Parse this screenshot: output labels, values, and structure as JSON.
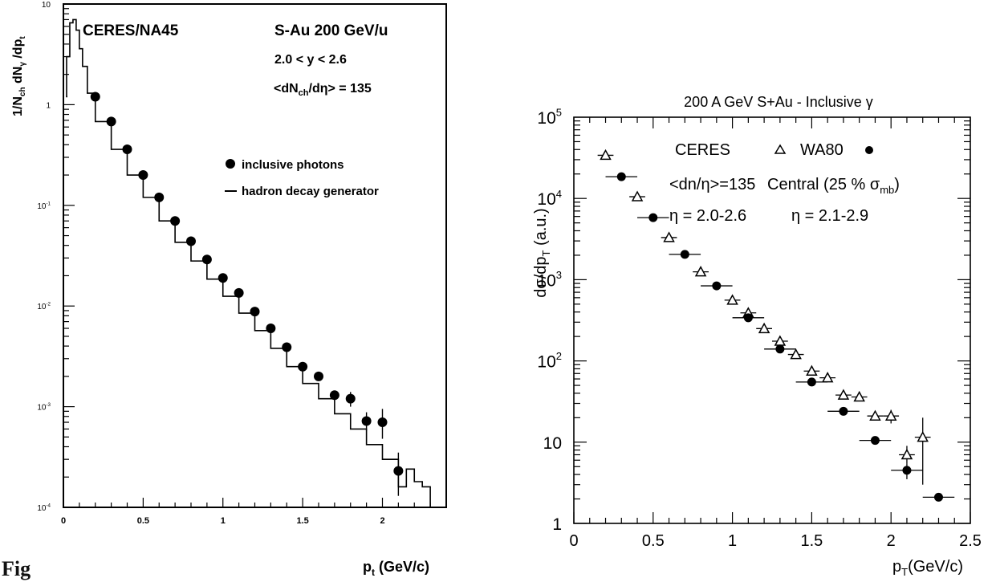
{
  "caption_fragment": "Fig",
  "chart_data": [
    {
      "type": "scatter",
      "log_y": true,
      "xlim": [
        0,
        2.4
      ],
      "ylim": [
        0.0001,
        10
      ],
      "xlabel": "p_t (GeV/c)",
      "ylabel": "1/N_ch dN_γ /dp_t",
      "x_ticks": [
        0,
        0.5,
        1,
        1.5,
        2
      ],
      "x_tick_labels": [
        "0",
        "0.5",
        "1",
        "1.5",
        "2"
      ],
      "y_ticks": [
        10,
        1,
        0.1,
        0.01,
        0.001,
        0.0001
      ],
      "y_tick_labels": [
        {
          "base": "10",
          "exp": ""
        },
        {
          "base": "1",
          "exp": ""
        },
        {
          "base": "10",
          "exp": "-1"
        },
        {
          "base": "10",
          "exp": "-2"
        },
        {
          "base": "10",
          "exp": "-3"
        },
        {
          "base": "10",
          "exp": "-4"
        }
      ],
      "annotations": {
        "experiment": "CERES/NA45",
        "system": "S-Au 200 GeV/u",
        "rapidity": "2.0 < y < 2.6",
        "multiplicity": "<dN_ch/dη> = 135"
      },
      "legend": {
        "placement": "right",
        "entries": [
          {
            "marker": "filled-circle",
            "label": "inclusive photons"
          },
          {
            "marker": "line",
            "label": "hadron decay generator"
          }
        ]
      },
      "series": [
        {
          "name": "inclusive photons",
          "marker": "filled-circle",
          "x": [
            0.2,
            0.3,
            0.4,
            0.5,
            0.6,
            0.7,
            0.8,
            0.9,
            1.0,
            1.1,
            1.2,
            1.3,
            1.4,
            1.5,
            1.6,
            1.7,
            1.8,
            1.9,
            2.0,
            2.1
          ],
          "y": [
            1.2,
            0.68,
            0.36,
            0.2,
            0.12,
            0.07,
            0.044,
            0.029,
            0.019,
            0.0135,
            0.0088,
            0.006,
            0.0039,
            0.0025,
            0.002,
            0.0013,
            0.0012,
            0.00072,
            0.0007,
            0.00023
          ],
          "yerr_low": [
            0,
            0,
            0,
            0,
            0,
            0,
            0,
            0,
            0,
            0,
            0,
            0,
            0,
            0,
            0,
            0,
            0.0002,
            0.00014,
            0.00022,
            0.0001
          ],
          "yerr_high": [
            0,
            0,
            0,
            0,
            0,
            0,
            0,
            0,
            0,
            0,
            0,
            0,
            0,
            0,
            0,
            0,
            0.0002,
            0.00016,
            0.00025,
            0.00012
          ]
        },
        {
          "name": "hadron decay generator",
          "marker": "histogram-line",
          "x": [
            0.02,
            0.04,
            0.06,
            0.08,
            0.1,
            0.12,
            0.15,
            0.2,
            0.3,
            0.4,
            0.5,
            0.6,
            0.7,
            0.8,
            0.9,
            1.0,
            1.1,
            1.2,
            1.3,
            1.4,
            1.5,
            1.6,
            1.7,
            1.8,
            1.9,
            2.0,
            2.1,
            2.15,
            2.2,
            2.25,
            2.3,
            2.4
          ],
          "y": [
            1.2,
            3.0,
            6.5,
            7.0,
            5.5,
            3.6,
            2.4,
            1.3,
            0.68,
            0.36,
            0.2,
            0.12,
            0.07,
            0.043,
            0.028,
            0.0185,
            0.0125,
            0.0085,
            0.0057,
            0.0038,
            0.0025,
            0.0017,
            0.0012,
            0.00085,
            0.0006,
            0.00042,
            0.0003,
            0.00016,
            0.00024,
            0.00018,
            0.00016,
            0.0001
          ]
        }
      ]
    },
    {
      "type": "scatter",
      "log_y": true,
      "title": "200 A GeV S+Au - Inclusive γ",
      "xlim": [
        0,
        2.5
      ],
      "ylim": [
        1,
        100000
      ],
      "xlabel": "p_T(GeV/c)",
      "ylabel": "dσ/dp_T (a.u.)",
      "x_ticks": [
        0,
        0.5,
        1,
        1.5,
        2,
        2.5
      ],
      "x_tick_labels": [
        "0",
        "0.5",
        "1",
        "1.5",
        "2",
        "2.5"
      ],
      "y_ticks": [
        1,
        10,
        100,
        1000,
        10000,
        100000
      ],
      "y_tick_labels": [
        {
          "base": "1",
          "exp": ""
        },
        {
          "base": "10",
          "exp": ""
        },
        {
          "base": "10",
          "exp": "2"
        },
        {
          "base": "10",
          "exp": "3"
        },
        {
          "base": "10",
          "exp": "4"
        },
        {
          "base": "10",
          "exp": "5"
        }
      ],
      "legend": {
        "placement": "top-right",
        "entries": [
          {
            "marker": "open-triangle",
            "label": "CERES"
          },
          {
            "marker": "filled-circle",
            "label": "WA80"
          }
        ]
      },
      "annotations": {
        "multiplicity": "<dn/η>=135",
        "centrality_prefix": "Central  (25 % σ",
        "centrality_sub": "mb",
        "eta_ceres": "η = 2.0-2.6",
        "eta_wa80": "η = 2.1-2.9"
      },
      "series": [
        {
          "name": "CERES",
          "marker": "open-triangle",
          "x": [
            0.2,
            0.4,
            0.6,
            0.8,
            1.0,
            1.1,
            1.2,
            1.3,
            1.4,
            1.5,
            1.6,
            1.7,
            1.8,
            1.9,
            2.0,
            2.1,
            2.2
          ],
          "y": [
            34000,
            10500,
            3300,
            1250,
            560,
            390,
            250,
            175,
            120,
            75,
            62,
            38,
            36,
            21,
            21,
            7,
            11.5
          ],
          "xerr": [
            0.05,
            0.05,
            0.05,
            0.05,
            0.05,
            0.05,
            0.05,
            0.05,
            0.05,
            0.05,
            0.05,
            0.05,
            0.05,
            0.05,
            0.05,
            0.05,
            0.05
          ],
          "yerr_low": [
            0,
            0,
            0,
            0,
            0,
            0,
            0,
            0,
            0,
            0,
            0,
            0,
            0,
            0,
            4,
            1.5,
            8.5
          ],
          "yerr_high": [
            0,
            0,
            0,
            0,
            0,
            0,
            0,
            0,
            0,
            0,
            0,
            0,
            0,
            0,
            4,
            2,
            8.5
          ]
        },
        {
          "name": "WA80",
          "marker": "filled-circle",
          "x": [
            0.3,
            0.5,
            0.7,
            0.9,
            1.1,
            1.3,
            1.5,
            1.7,
            1.9,
            2.1,
            2.3
          ],
          "y": [
            18500,
            5800,
            2050,
            840,
            340,
            140,
            55,
            24,
            10.5,
            4.5,
            2.1
          ],
          "xerr": [
            0.1,
            0.1,
            0.1,
            0.1,
            0.1,
            0.1,
            0.1,
            0.1,
            0.1,
            0.1,
            0.1
          ],
          "yerr_low": [
            0,
            0,
            0,
            0,
            0,
            0,
            0,
            0,
            0,
            1,
            0
          ],
          "yerr_high": [
            0,
            0,
            0,
            0,
            0,
            0,
            0,
            0,
            0,
            1,
            0
          ]
        }
      ]
    }
  ]
}
